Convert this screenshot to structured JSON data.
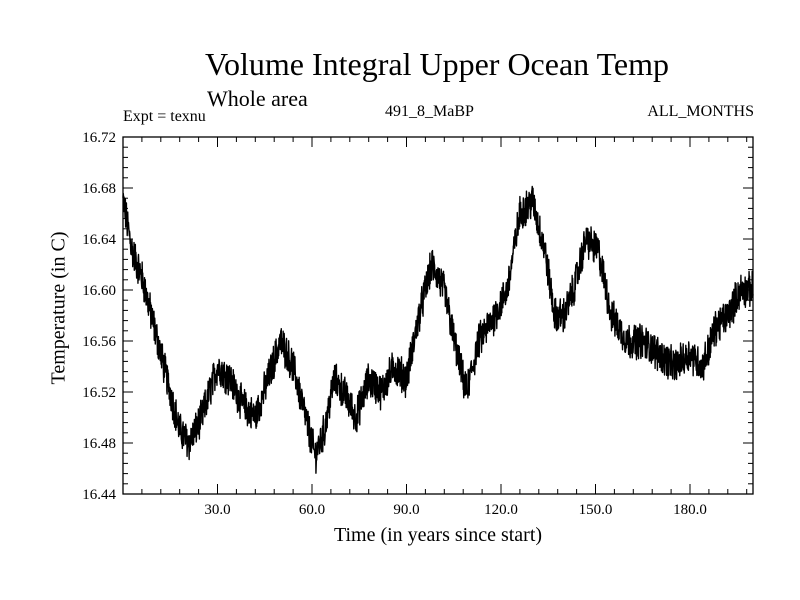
{
  "chart_data": {
    "type": "line",
    "title": "Volume Integral Upper Ocean Temp",
    "subtitle": "Whole area",
    "expt_label": "Expt = texnu",
    "run_label": "491_8_MaBP",
    "months_label": "ALL_MONTHS",
    "xlabel": "Time (in years since start)",
    "ylabel": "Temperature (in C)",
    "xlim": [
      0,
      200
    ],
    "ylim": [
      16.44,
      16.72
    ],
    "xticks": [
      30,
      60,
      90,
      120,
      150,
      180
    ],
    "xtick_labels": [
      "30.0",
      "60.0",
      "90.0",
      "120.0",
      "150.0",
      "180.0"
    ],
    "yticks": [
      16.44,
      16.48,
      16.52,
      16.56,
      16.6,
      16.64,
      16.68,
      16.72
    ],
    "ytick_labels": [
      "16.44",
      "16.48",
      "16.52",
      "16.56",
      "16.60",
      "16.64",
      "16.68",
      "16.72"
    ],
    "grid": false,
    "series": [
      {
        "name": "Volume integral upper ocean temperature",
        "color": "#000000",
        "noise_amplitude": 0.012,
        "trend_points": [
          [
            0,
            16.67
          ],
          [
            3,
            16.63
          ],
          [
            6,
            16.61
          ],
          [
            10,
            16.57
          ],
          [
            14,
            16.53
          ],
          [
            18,
            16.49
          ],
          [
            21,
            16.48
          ],
          [
            25,
            16.5
          ],
          [
            30,
            16.54
          ],
          [
            34,
            16.53
          ],
          [
            38,
            16.51
          ],
          [
            42,
            16.5
          ],
          [
            46,
            16.53
          ],
          [
            50,
            16.56
          ],
          [
            54,
            16.54
          ],
          [
            58,
            16.5
          ],
          [
            61,
            16.47
          ],
          [
            64,
            16.49
          ],
          [
            67,
            16.53
          ],
          [
            70,
            16.52
          ],
          [
            74,
            16.5
          ],
          [
            78,
            16.53
          ],
          [
            82,
            16.52
          ],
          [
            86,
            16.54
          ],
          [
            90,
            16.53
          ],
          [
            94,
            16.58
          ],
          [
            98,
            16.62
          ],
          [
            102,
            16.6
          ],
          [
            106,
            16.55
          ],
          [
            109,
            16.52
          ],
          [
            113,
            16.56
          ],
          [
            118,
            16.58
          ],
          [
            122,
            16.6
          ],
          [
            126,
            16.66
          ],
          [
            130,
            16.67
          ],
          [
            134,
            16.63
          ],
          [
            137,
            16.58
          ],
          [
            140,
            16.58
          ],
          [
            143,
            16.6
          ],
          [
            147,
            16.64
          ],
          [
            151,
            16.63
          ],
          [
            155,
            16.58
          ],
          [
            160,
            16.56
          ],
          [
            165,
            16.56
          ],
          [
            170,
            16.55
          ],
          [
            175,
            16.54
          ],
          [
            180,
            16.55
          ],
          [
            184,
            16.54
          ],
          [
            188,
            16.57
          ],
          [
            192,
            16.58
          ],
          [
            196,
            16.6
          ],
          [
            200,
            16.6
          ]
        ]
      }
    ]
  }
}
